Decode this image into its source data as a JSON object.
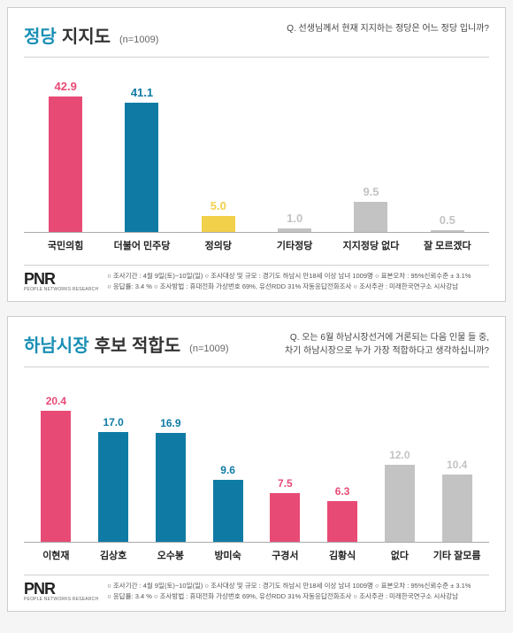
{
  "panels": [
    {
      "title_accent": "정당",
      "title_accent_color": "#1a8fb5",
      "title_main": "지지도",
      "n_label": "(n=1009)",
      "question": "Q. 선생님께서 현재 지지하는 정당은 어느 정당 입니까?",
      "chart": {
        "type": "bar",
        "max_value": 45,
        "bars": [
          {
            "label": "국민의힘",
            "value": 42.9,
            "color": "#e84a76"
          },
          {
            "label": "더불어 민주당",
            "value": 41.1,
            "color": "#0f7ba5"
          },
          {
            "label": "정의당",
            "value": 5.0,
            "color": "#f2d04a"
          },
          {
            "label": "기타정당",
            "value": 1.0,
            "color": "#c3c3c3"
          },
          {
            "label": "지지정당 없다",
            "value": 9.5,
            "color": "#c3c3c3"
          },
          {
            "label": "잘 모르겠다",
            "value": 0.5,
            "color": "#c3c3c3"
          }
        ]
      },
      "footnote_l1": "○ 조사기간 : 4월 9일(토)~10일(일)   ○ 조사대상 및 규모 : 경기도 하남시 만18세 이상 남녀 1009명   ○ 표본오차 : 95%신뢰수준 ± 3.1%",
      "footnote_l2": "○ 응답률: 3.4 %   ○ 조사방법 : 휴대전화 가상번호 69%, 유선RDD 31% 자동응답전화조사   ○ 조사주관 : 미래한국연구소 시사강남"
    },
    {
      "title_accent": "하남시장",
      "title_accent_color": "#1a8fb5",
      "title_main": "후보 적합도",
      "n_label": "(n=1009)",
      "question": "Q. 오는 6월 하남시장선거에 거론되는 다음 인물 들 중,\n차기 하남시장으로 누가 가장 적합하다고 생각하십니까?",
      "chart": {
        "type": "bar",
        "max_value": 22,
        "bars": [
          {
            "label": "이현재",
            "value": 20.4,
            "color": "#e84a76"
          },
          {
            "label": "김상호",
            "value": 17.0,
            "color": "#0f7ba5"
          },
          {
            "label": "오수봉",
            "value": 16.9,
            "color": "#0f7ba5"
          },
          {
            "label": "방미숙",
            "value": 9.6,
            "color": "#0f7ba5"
          },
          {
            "label": "구경서",
            "value": 7.5,
            "color": "#e84a76"
          },
          {
            "label": "김황식",
            "value": 6.3,
            "color": "#e84a76"
          },
          {
            "label": "없다",
            "value": 12.0,
            "color": "#c3c3c3"
          },
          {
            "label": "기타 잘모름",
            "value": 10.4,
            "color": "#c3c3c3"
          }
        ]
      },
      "footnote_l1": "○ 조사기간 : 4월 9일(토)~10일(일)   ○ 조사대상 및 규모 : 경기도 하남시 만18세 이상 남녀 1009명   ○ 표본오차 : 95%신뢰수준 ± 3.1%",
      "footnote_l2": "○ 응답률: 3.4 %   ○ 조사방법 : 휴대전화 가상번호 69%, 유선RDD 31% 자동응답전화조사   ○ 조사주관 : 미래한국연구소 시사강남"
    }
  ],
  "logo_text": "PNR",
  "logo_sub": "PEOPLE NETWORKS RESEARCH"
}
